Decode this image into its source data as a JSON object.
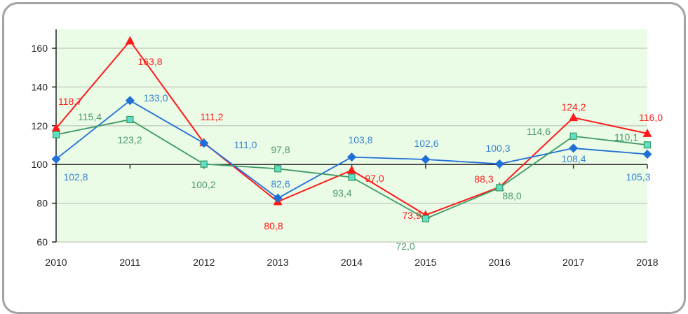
{
  "chart_data": {
    "type": "line",
    "categories": [
      "2010",
      "2011",
      "2012",
      "2013",
      "2014",
      "2015",
      "2016",
      "2017",
      "2018"
    ],
    "ylim": [
      60,
      160
    ],
    "yticks": [
      60,
      80,
      100,
      120,
      140,
      160
    ],
    "x_axis_crosses_at": 100,
    "grid": "horizontal",
    "plot_background": "#eafbe6",
    "decimal_separator": ",",
    "series": [
      {
        "color": "#ff1a1a",
        "marker": "triangle",
        "values": [
          118.7,
          163.8,
          111.2,
          80.8,
          97.0,
          73.9,
          88.3,
          124.2,
          116.0
        ]
      },
      {
        "color": "#1f6fd6",
        "marker": "diamond",
        "label_color": "#3a85d0",
        "values": [
          102.8,
          133.0,
          111.0,
          82.6,
          103.8,
          102.6,
          100.3,
          108.4,
          105.3
        ]
      },
      {
        "color": "#3c9a64",
        "marker": "square",
        "marker_fill": "#5ee0c8",
        "label_color": "#4a9a6a",
        "values": [
          115.4,
          123.2,
          100.2,
          97.8,
          93.4,
          72.0,
          88.0,
          114.6,
          110.1
        ]
      }
    ]
  }
}
